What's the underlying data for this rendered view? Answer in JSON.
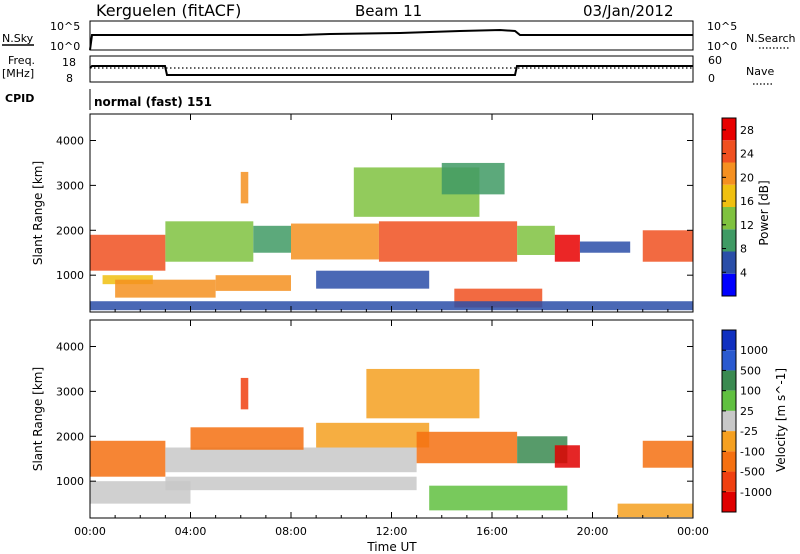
{
  "header": {
    "station": "Kerguelen (fitACF)",
    "beam": "Beam 11",
    "date": "03/Jan/2012"
  },
  "top_panels": {
    "nsky": {
      "label": "N.Sky",
      "ticks": [
        "10^5",
        "10^0"
      ]
    },
    "nsearch": {
      "label": "N.Search",
      "ticks": [
        "10^5",
        "10^0"
      ]
    },
    "freq": {
      "label_line1": "Freq.",
      "label_line2": "[MHz]",
      "ticks": [
        "18",
        "8"
      ]
    },
    "nave": {
      "label": "Nave",
      "ticks": [
        "60",
        "0"
      ]
    },
    "cpid": {
      "label": "CPID",
      "value": "normal (fast) 151"
    }
  },
  "colors": {
    "power_scale": [
      "#0000ff",
      "#2a4ea8",
      "#3f9a64",
      "#7fc23f",
      "#f0c010",
      "#f59020",
      "#f05020",
      "#e80000"
    ],
    "velocity_scale": [
      "#1030c0",
      "#2a5ad0",
      "#3a8a50",
      "#60c040",
      "#c8c8c8",
      "#f5a020",
      "#f57010",
      "#f04010",
      "#e00000"
    ]
  },
  "chart_data": [
    {
      "type": "heatmap",
      "name": "power",
      "x_ticks": [
        "00:00",
        "04:00",
        "08:00",
        "12:00",
        "16:00",
        "20:00",
        "00:00"
      ],
      "xlim_hours": [
        0,
        24
      ],
      "ylabel": "Slant Range [km]",
      "y_ticks": [
        1000,
        2000,
        3000,
        4000
      ],
      "ylim": [
        180,
        4590
      ],
      "colorbar_label": "Power [dB]",
      "colorbar_ticks": [
        4,
        8,
        12,
        16,
        20,
        24,
        28
      ],
      "colorbar_range": [
        0,
        30
      ],
      "bands": [
        {
          "t0": 0.0,
          "t1": 3.0,
          "r0": 1100,
          "r1": 1900,
          "color": "#f05020"
        },
        {
          "t0": 0.5,
          "t1": 2.5,
          "r0": 800,
          "r1": 1000,
          "color": "#f0c010"
        },
        {
          "t0": 1.0,
          "t1": 5.0,
          "r0": 500,
          "r1": 900,
          "color": "#f59020"
        },
        {
          "t0": 3.0,
          "t1": 6.5,
          "r0": 1300,
          "r1": 2200,
          "color": "#7fc23f"
        },
        {
          "t0": 6.5,
          "t1": 8.0,
          "r0": 1500,
          "r1": 2100,
          "color": "#3f9a64"
        },
        {
          "t0": 5.0,
          "t1": 8.0,
          "r0": 650,
          "r1": 1000,
          "color": "#f59020"
        },
        {
          "t0": 8.0,
          "t1": 11.5,
          "r0": 1350,
          "r1": 2150,
          "color": "#f59020"
        },
        {
          "t0": 11.5,
          "t1": 17.0,
          "r0": 1300,
          "r1": 2200,
          "color": "#f05020"
        },
        {
          "t0": 10.5,
          "t1": 15.5,
          "r0": 2300,
          "r1": 3400,
          "color": "#7fc23f"
        },
        {
          "t0": 14.0,
          "t1": 16.5,
          "r0": 2800,
          "r1": 3500,
          "color": "#3f9a64"
        },
        {
          "t0": 17.0,
          "t1": 18.5,
          "r0": 1450,
          "r1": 2100,
          "color": "#7fc23f"
        },
        {
          "t0": 18.5,
          "t1": 19.5,
          "r0": 1300,
          "r1": 1900,
          "color": "#e80000"
        },
        {
          "t0": 19.5,
          "t1": 21.5,
          "r0": 1500,
          "r1": 1750,
          "color": "#2a4ea8"
        },
        {
          "t0": 22.0,
          "t1": 24.0,
          "r0": 1300,
          "r1": 2000,
          "color": "#f05020"
        },
        {
          "t0": 14.5,
          "t1": 18.0,
          "r0": 280,
          "r1": 700,
          "color": "#f05020"
        },
        {
          "t0": 9.0,
          "t1": 13.5,
          "r0": 700,
          "r1": 1100,
          "color": "#2a4ea8"
        },
        {
          "t0": 0.0,
          "t1": 24.0,
          "r0": 220,
          "r1": 420,
          "color": "#2a4ea8"
        },
        {
          "t0": 6.0,
          "t1": 6.3,
          "r0": 2600,
          "r1": 3300,
          "color": "#f59020"
        }
      ]
    },
    {
      "type": "heatmap",
      "name": "velocity",
      "x_ticks": [
        "00:00",
        "04:00",
        "08:00",
        "12:00",
        "16:00",
        "20:00",
        "00:00"
      ],
      "xlim_hours": [
        0,
        24
      ],
      "xlabel": "Time UT",
      "ylabel": "Slant Range [km]",
      "y_ticks": [
        1000,
        2000,
        3000,
        4000
      ],
      "ylim": [
        180,
        4590
      ],
      "colorbar_label": "Velocity [m s^-1]",
      "colorbar_ticks": [
        1000,
        500,
        100,
        25,
        -25,
        -100,
        -500,
        -1000
      ],
      "colorbar_range": [
        -1250,
        1250
      ],
      "bands": [
        {
          "t0": 0.0,
          "t1": 3.0,
          "r0": 1100,
          "r1": 1900,
          "color": "#f57010"
        },
        {
          "t0": 0.0,
          "t1": 4.0,
          "r0": 500,
          "r1": 1000,
          "color": "#c8c8c8"
        },
        {
          "t0": 3.0,
          "t1": 13.0,
          "r0": 1200,
          "r1": 1750,
          "color": "#c8c8c8"
        },
        {
          "t0": 4.0,
          "t1": 8.5,
          "r0": 1700,
          "r1": 2200,
          "color": "#f57010"
        },
        {
          "t0": 9.0,
          "t1": 13.5,
          "r0": 1750,
          "r1": 2300,
          "color": "#f5a020"
        },
        {
          "t0": 13.0,
          "t1": 17.0,
          "r0": 1400,
          "r1": 2100,
          "color": "#f57010"
        },
        {
          "t0": 11.0,
          "t1": 15.5,
          "r0": 2400,
          "r1": 3500,
          "color": "#f5a020"
        },
        {
          "t0": 17.0,
          "t1": 19.0,
          "r0": 1400,
          "r1": 2000,
          "color": "#3a8a50"
        },
        {
          "t0": 18.5,
          "t1": 19.5,
          "r0": 1300,
          "r1": 1800,
          "color": "#e00000"
        },
        {
          "t0": 22.0,
          "t1": 24.0,
          "r0": 1300,
          "r1": 1900,
          "color": "#f57010"
        },
        {
          "t0": 13.5,
          "t1": 19.0,
          "r0": 350,
          "r1": 900,
          "color": "#60c040"
        },
        {
          "t0": 21.0,
          "t1": 24.0,
          "r0": 200,
          "r1": 500,
          "color": "#f5a020"
        },
        {
          "t0": 6.0,
          "t1": 6.3,
          "r0": 2600,
          "r1": 3300,
          "color": "#f04010"
        },
        {
          "t0": 3.0,
          "t1": 13.0,
          "r0": 800,
          "r1": 1100,
          "color": "#c8c8c8"
        }
      ]
    }
  ]
}
